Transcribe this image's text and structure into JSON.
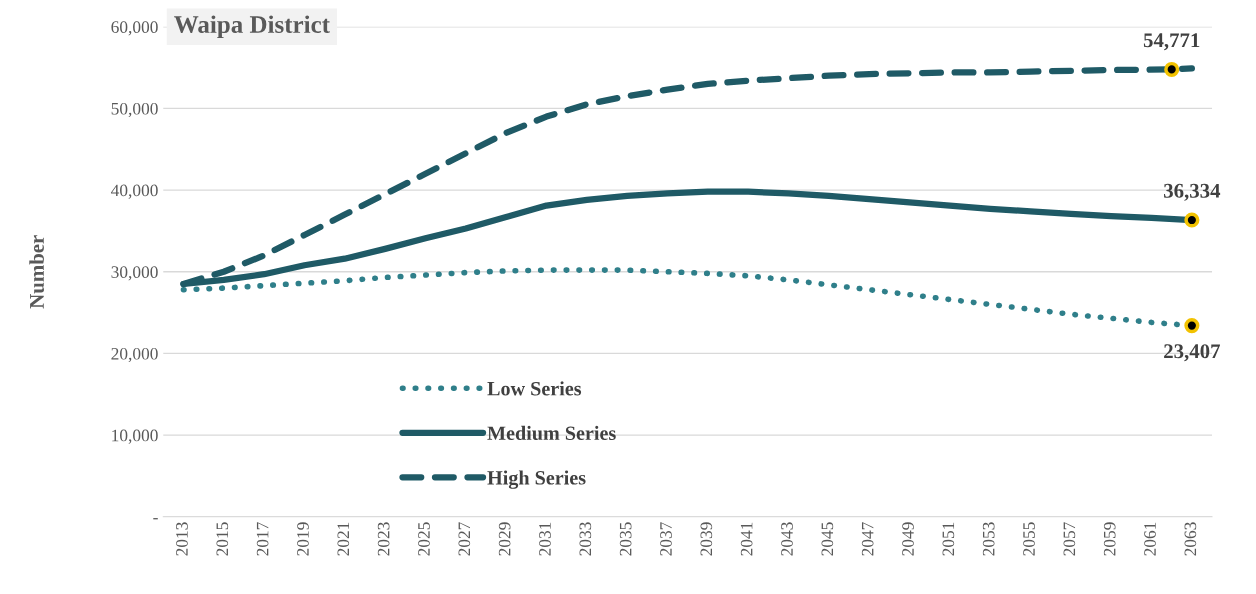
{
  "chart_data": {
    "type": "line",
    "title": "Waipa District",
    "ylabel": "Number",
    "x": [
      2013,
      2015,
      2017,
      2019,
      2021,
      2023,
      2025,
      2027,
      2029,
      2031,
      2033,
      2035,
      2037,
      2039,
      2041,
      2043,
      2045,
      2047,
      2049,
      2051,
      2053,
      2055,
      2057,
      2059,
      2061,
      2063
    ],
    "series": [
      {
        "name": "Low Series",
        "color": "#2f7f8a",
        "line_style": "dotted",
        "values": [
          27800,
          28000,
          28300,
          28600,
          28900,
          29300,
          29600,
          29900,
          30100,
          30200,
          30200,
          30200,
          30000,
          29800,
          29500,
          29000,
          28400,
          27800,
          27200,
          26600,
          26000,
          25400,
          24800,
          24300,
          23800,
          23407
        ],
        "value_labels": [
          null,
          null,
          null,
          null,
          null,
          null,
          null,
          null,
          null,
          null,
          null,
          null,
          null,
          null,
          null,
          null,
          null,
          null,
          null,
          null,
          null,
          null,
          null,
          null,
          null,
          "23,407"
        ]
      },
      {
        "name": "Medium Series",
        "color": "#1f5a66",
        "line_style": "solid",
        "values": [
          28500,
          29000,
          29700,
          30800,
          31600,
          32800,
          34100,
          35300,
          36700,
          38100,
          38800,
          39300,
          39600,
          39800,
          39800,
          39600,
          39300,
          38900,
          38500,
          38100,
          37700,
          37400,
          37100,
          36800,
          36600,
          36334
        ],
        "value_labels": [
          null,
          null,
          null,
          null,
          null,
          null,
          null,
          null,
          null,
          null,
          null,
          null,
          null,
          null,
          null,
          null,
          null,
          null,
          null,
          null,
          null,
          null,
          null,
          null,
          null,
          "36,334"
        ]
      },
      {
        "name": "High Series",
        "color": "#1f5a66",
        "line_style": "dashed",
        "x": [
          2013,
          2015,
          2017,
          2019,
          2021,
          2023,
          2025,
          2027,
          2029,
          2031,
          2033,
          2035,
          2037,
          2039,
          2041,
          2043,
          2045,
          2047,
          2049,
          2051,
          2053,
          2055,
          2057,
          2059,
          2062,
          2063
        ],
        "values": [
          28500,
          30000,
          32000,
          34500,
          37000,
          39500,
          42000,
          44500,
          47000,
          49000,
          50500,
          51500,
          52300,
          53000,
          53400,
          53700,
          54000,
          54200,
          54300,
          54400,
          54400,
          54500,
          54600,
          54700,
          54771,
          54900
        ],
        "value_labels": [
          null,
          null,
          null,
          null,
          null,
          null,
          null,
          null,
          null,
          null,
          null,
          null,
          null,
          null,
          null,
          null,
          null,
          null,
          null,
          null,
          null,
          null,
          null,
          null,
          "54,771",
          null
        ]
      }
    ],
    "xlim": [
      2012,
      2064
    ],
    "xticks": [
      2013,
      2015,
      2017,
      2019,
      2021,
      2023,
      2025,
      2027,
      2029,
      2031,
      2033,
      2035,
      2037,
      2039,
      2041,
      2043,
      2045,
      2047,
      2049,
      2051,
      2053,
      2055,
      2057,
      2059,
      2061,
      2063
    ],
    "ylim": [
      0,
      60000
    ],
    "yticks": [
      {
        "value": 0,
        "label": "-"
      },
      {
        "value": 10000,
        "label": "10,000"
      },
      {
        "value": 20000,
        "label": "20,000"
      },
      {
        "value": 30000,
        "label": "30,000"
      },
      {
        "value": 40000,
        "label": "40,000"
      },
      {
        "value": 50000,
        "label": "50,000"
      },
      {
        "value": 60000,
        "label": "60,000"
      }
    ],
    "grid": "y",
    "legend": "bottom"
  }
}
